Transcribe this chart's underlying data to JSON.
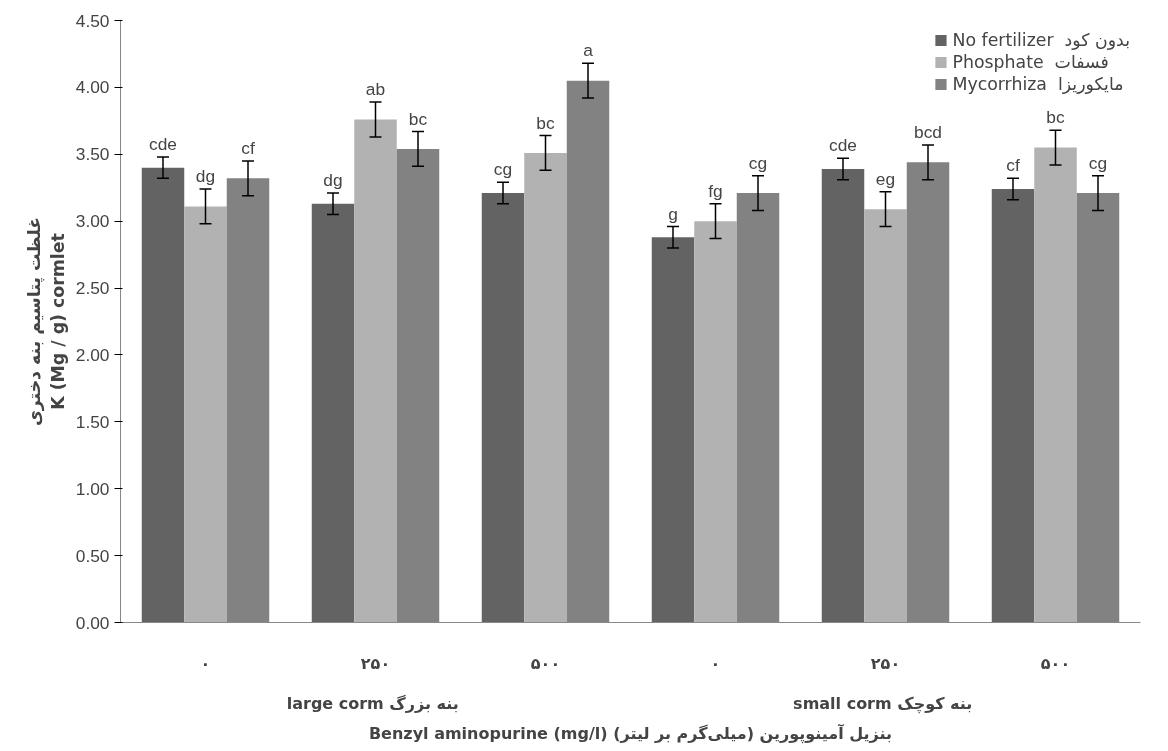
{
  "chart_data": {
    "type": "bar",
    "ylabel": "غلظت پتاسیم بنه دختری\nK (Mg / g) cormlet",
    "xlabel": "Benzyl aminopurine (mg/l) بنزیل آمینوپورین (میلی‌گرم بر لیتر)",
    "categories": [
      "۰",
      "۲۵۰",
      "۵۰۰",
      "۰",
      "۲۵۰",
      "۵۰۰"
    ],
    "annotations": [
      "large corm  بنه بزرگ",
      "small corm  بنه کوچک"
    ],
    "series": [
      {
        "name": "No fertilizer  بدون کود",
        "color": "#636363",
        "values": [
          3.4,
          3.13,
          3.21,
          2.88,
          3.39,
          3.24
        ],
        "errors": [
          0.08,
          0.08,
          0.08,
          0.08,
          0.08,
          0.08
        ],
        "value_labels": [
          "cde",
          "dg",
          "cg",
          "g",
          "cde",
          "cf"
        ]
      },
      {
        "name": "Phosphate  فسفات",
        "color": "#b2b2b2",
        "values": [
          3.11,
          3.76,
          3.51,
          3.0,
          3.09,
          3.55
        ],
        "errors": [
          0.13,
          0.13,
          0.13,
          0.13,
          0.13,
          0.13
        ],
        "value_labels": [
          "dg",
          "ab",
          "bc",
          "fg",
          "eg",
          "bc"
        ]
      },
      {
        "name": "Mycorrhiza  مایکوریزا",
        "color": "#828282",
        "values": [
          3.32,
          3.54,
          4.05,
          3.21,
          3.44,
          3.21
        ],
        "errors": [
          0.13,
          0.13,
          0.13,
          0.13,
          0.13,
          0.13
        ],
        "value_labels": [
          "cf",
          "bc",
          "a",
          "cg",
          "bcd",
          "cg"
        ]
      }
    ],
    "ylim": [
      0,
      4.5
    ],
    "yticks": [
      {
        "value": 0,
        "label": "0.00"
      },
      {
        "value": 0.5,
        "label": "0.50"
      },
      {
        "value": 1,
        "label": "1.00"
      },
      {
        "value": 1.5,
        "label": "1.50"
      },
      {
        "value": 2,
        "label": "2.00"
      },
      {
        "value": 2.5,
        "label": "2.50"
      },
      {
        "value": 3,
        "label": "3.00"
      },
      {
        "value": 3.5,
        "label": "3.50"
      },
      {
        "value": 4,
        "label": "4.00"
      },
      {
        "value": 4.5,
        "label": "4.50"
      }
    ],
    "legend": "top right",
    "grid": false
  }
}
